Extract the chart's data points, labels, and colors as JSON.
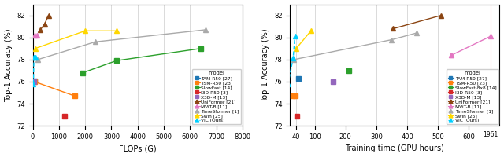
{
  "left_plot": {
    "xlabel": "FLOPs (G)",
    "ylabel": "Top-1 Accuracy (%)",
    "xlim": [
      0,
      8000
    ],
    "ylim": [
      72,
      83
    ],
    "yticks": [
      72,
      74,
      76,
      78,
      80,
      82
    ],
    "xticks": [
      0,
      1000,
      2000,
      3000,
      4000,
      5000,
      6000,
      7000,
      8000
    ],
    "series": {
      "TAM-R50 [27]": {
        "color": "#1f77b4",
        "marker": "s",
        "x": [
          67
        ],
        "y": [
          76.1
        ]
      },
      "TSM-R50 [23]": {
        "color": "#ff7f0e",
        "marker": "s",
        "x": [
          65,
          1600
        ],
        "y": [
          76.0,
          74.7
        ]
      },
      "SlowFast [14]": {
        "color": "#2ca02c",
        "marker": "s",
        "x": [
          1900,
          3200,
          6400
        ],
        "y": [
          76.8,
          77.9,
          79.0
        ]
      },
      "I3D-R50 [3]": {
        "color": "#d62728",
        "marker": "s",
        "x": [
          1200
        ],
        "y": [
          72.9
        ]
      },
      "X3D-M [13]": {
        "color": "#9467bd",
        "marker": "s",
        "x": [
          47
        ],
        "y": [
          76.0
        ]
      },
      "UniFormer [21]": {
        "color": "#8B4513",
        "marker": "^",
        "x": [
          290,
          450,
          600
        ],
        "y": [
          80.7,
          81.2,
          82.0
        ]
      },
      "MViT-B [11]": {
        "color": "#e377c2",
        "marker": "^",
        "x": [
          70,
          170
        ],
        "y": [
          80.2,
          80.2
        ]
      },
      "TimeSformer [1]": {
        "color": "#aaaaaa",
        "marker": "^",
        "x": [
          196,
          2380,
          6600
        ],
        "y": [
          78.0,
          79.6,
          80.7
        ]
      },
      "Swin [25]": {
        "color": "#ffd700",
        "marker": "^",
        "x": [
          88,
          2000,
          3200
        ],
        "y": [
          79.0,
          80.6,
          80.6
        ]
      },
      "VIC (Ours)": {
        "color": "#00cfff",
        "marker": "^",
        "linestyle": "--",
        "x": [
          24,
          47,
          95
        ],
        "y": [
          75.8,
          78.2,
          78.2
        ]
      }
    },
    "legend_order": [
      "TAM-R50 [27]",
      "TSM-R50 [23]",
      "SlowFast [14]",
      "I3D-R50 [3]",
      "X3D-M [13]",
      "UniFormer [21]",
      "MViT-B [11]",
      "TimeSformer [1]",
      "Swin [25]",
      "VIC (Ours)"
    ]
  },
  "right_plot": {
    "xlabel": "Training time (GPU hours)",
    "ylabel": "Top-1 Accuracy (%)",
    "xlim": [
      20,
      700
    ],
    "xlim2": 1961,
    "ylim": [
      72,
      83
    ],
    "yticks": [
      72,
      74,
      76,
      78,
      80,
      82
    ],
    "xticks": [
      40,
      100,
      200,
      300,
      400,
      500,
      600
    ],
    "series": {
      "TAM-R50 [27]": {
        "color": "#1f77b4",
        "marker": "s",
        "x": [
          48
        ],
        "y": [
          76.3
        ]
      },
      "TSM-R50 [23]": {
        "color": "#ff7f0e",
        "marker": "s",
        "x": [
          30,
          36
        ],
        "y": [
          74.7,
          74.7
        ]
      },
      "SlowFast-8x8 [14]": {
        "color": "#2ca02c",
        "marker": "s",
        "x": [
          210
        ],
        "y": [
          77.0
        ]
      },
      "I3D-R50 [3]": {
        "color": "#d62728",
        "marker": "s",
        "x": [
          43
        ],
        "y": [
          72.9
        ]
      },
      "X3D-M [13]": {
        "color": "#9467bd",
        "marker": "s",
        "x": [
          160
        ],
        "y": [
          76.0
        ]
      },
      "UniFormer [21]": {
        "color": "#8B4513",
        "marker": "^",
        "x": [
          355,
          510
        ],
        "y": [
          80.8,
          82.0
        ]
      },
      "MViT-B [11]": {
        "color": "#e377c2",
        "marker": "^",
        "x": [
          544,
          1961
        ],
        "y": [
          78.4,
          80.1
        ]
      },
      "TimeSformer [1]": {
        "color": "#aaaaaa",
        "marker": "^",
        "x": [
          33,
          350,
          430
        ],
        "y": [
          78.0,
          79.8,
          80.4
        ]
      },
      "Swin [25]": {
        "color": "#ffd700",
        "marker": "^",
        "x": [
          40,
          88
        ],
        "y": [
          79.0,
          80.6
        ]
      },
      "VIC (Ours)": {
        "color": "#00cfff",
        "marker": "^",
        "linestyle": "--",
        "x": [
          14,
          30,
          36
        ],
        "y": [
          75.8,
          78.1,
          80.1
        ]
      }
    },
    "legend_order": [
      "TAM-R50 [27]",
      "TSM-R50 [23]",
      "SlowFast-8x8 [14]",
      "I3D-R50 [3]",
      "X3D-M [13]",
      "UniFormer [21]",
      "MViT-B [11]",
      "TimeSformer [1]",
      "Swin [25]",
      "VIC (Ours)"
    ]
  }
}
